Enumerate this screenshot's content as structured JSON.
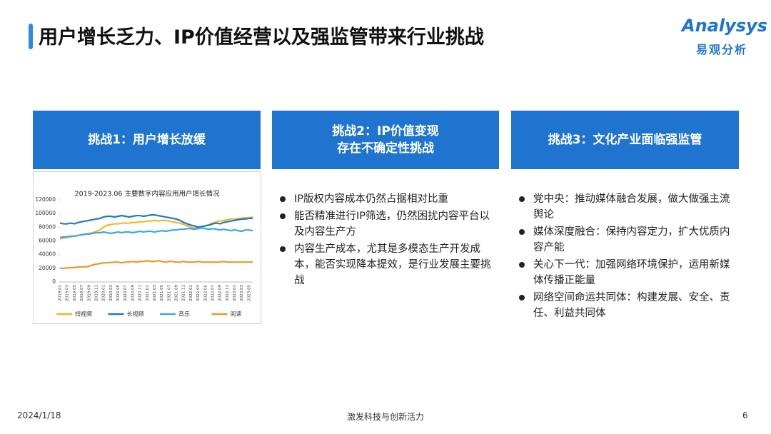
{
  "header": {
    "title": "用户增长乏力、IP价值经营以及强监管带来行业挑战",
    "logo": "Analysys",
    "logo_sub": "易观分析"
  },
  "columns": [
    {
      "heading": [
        "挑战1：用户增长放缓"
      ]
    },
    {
      "heading": [
        "挑战2：IP价值变现",
        "存在不确定性挑战"
      ],
      "bullets": [
        "IP版权内容成本仍然占据相对比重",
        "能否精准进行IP筛选，仍然困扰内容平台以及内容生产方",
        "内容生产成本，尤其是多模态生产开发成本，能否实现降本提效，是行业发展主要挑战"
      ]
    },
    {
      "heading": [
        "挑战3：文化产业面临强监管"
      ],
      "bullets": [
        "党中央：推动媒体融合发展，做大做强主流舆论",
        "媒体深度融合：保持内容定力，扩大优质内容产能",
        "关心下一代：加强网络环境保护，运用新媒体传播正能量",
        "网络空间命运共同体：构建发展、安全、责任、利益共同体"
      ]
    }
  ],
  "chart_data": {
    "type": "line",
    "title": "2019-2023.06 主要数字内容应用用户增长情况",
    "categories": [
      "2019.01",
      null,
      "2019.03",
      null,
      "2019.05",
      null,
      "2019.07",
      null,
      "2019.09",
      null,
      "2019.11",
      null,
      "2020.01",
      null,
      "2020.03",
      null,
      "2020.05",
      null,
      "2020.07",
      null,
      "2020.09",
      null,
      "2020.11",
      null,
      "2021.01",
      null,
      "2021.03",
      null,
      "2021.05",
      null,
      "2021.07",
      null,
      "2021.09",
      null,
      "2021.11",
      null,
      "2022.01",
      null,
      "2022.03",
      null,
      "2022.05",
      null,
      "2022.07",
      null,
      "2022.09",
      null,
      "2022.11",
      null,
      "2023.01",
      null,
      "2023.03",
      null,
      "2023.05",
      null
    ],
    "series": [
      {
        "name": "短视频",
        "color": "#f5b820",
        "values": [
          63000,
          64000,
          65000,
          66000,
          67000,
          68000,
          69000,
          70000,
          71000,
          72000,
          74000,
          76000,
          80000,
          83000,
          84000,
          85000,
          85000,
          86000,
          86000,
          86000,
          87000,
          87000,
          88000,
          88000,
          89000,
          89000,
          90000,
          89000,
          90000,
          90000,
          89000,
          88000,
          87000,
          86000,
          84000,
          82000,
          80000,
          79000,
          80000,
          81000,
          82000,
          84000,
          86000,
          88000,
          89000,
          90000,
          91000,
          92000,
          92000,
          93000,
          93000,
          94000,
          94000,
          95000
        ]
      },
      {
        "name": "长视频",
        "color": "#1c78d4",
        "values": [
          86000,
          85000,
          85000,
          86000,
          85000,
          87000,
          88000,
          89000,
          90000,
          91000,
          92000,
          93000,
          95000,
          96000,
          96000,
          95000,
          96000,
          97000,
          96000,
          95000,
          96000,
          97000,
          97000,
          96000,
          97000,
          98000,
          98000,
          97000,
          96000,
          95000,
          94000,
          93000,
          92000,
          90000,
          87000,
          85000,
          83000,
          82000,
          80000,
          81000,
          82000,
          83000,
          85000,
          86000,
          85000,
          87000,
          88000,
          89000,
          90000,
          91000,
          92000,
          92000,
          93000,
          93000
        ]
      },
      {
        "name": "音乐",
        "color": "#3aa7e8",
        "values": [
          65000,
          66000,
          66000,
          67000,
          67000,
          68000,
          69000,
          70000,
          70000,
          71000,
          72000,
          72000,
          73000,
          72000,
          71000,
          72000,
          73000,
          72000,
          73000,
          73000,
          72000,
          73000,
          74000,
          73000,
          74000,
          74000,
          73000,
          74000,
          75000,
          74000,
          75000,
          76000,
          76000,
          77000,
          77000,
          78000,
          78000,
          77000,
          78000,
          79000,
          78000,
          77000,
          78000,
          77000,
          76000,
          77000,
          76000,
          75000,
          76000,
          75000,
          74000,
          76000,
          76000,
          75000
        ]
      },
      {
        "name": "阅读",
        "color": "#f0962a",
        "values": [
          20000,
          20000,
          20500,
          21000,
          21000,
          22000,
          22000,
          22000,
          23000,
          25000,
          26000,
          27000,
          28000,
          28000,
          28500,
          29000,
          29000,
          28000,
          29000,
          29000,
          30000,
          29000,
          30000,
          30000,
          31000,
          30000,
          30000,
          31000,
          30000,
          29000,
          30000,
          30000,
          29000,
          29000,
          30000,
          29000,
          29000,
          29000,
          30000,
          29000,
          29000,
          29000,
          29000,
          29000,
          29000,
          30000,
          29000,
          29000,
          29000,
          29000,
          29000,
          29000,
          29000,
          29000
        ]
      }
    ],
    "ylim": [
      0,
      120000
    ],
    "yticks": [
      0,
      20000,
      40000,
      60000,
      80000,
      100000,
      120000
    ],
    "legend": "bottom"
  },
  "footer": {
    "date": "2024/1/18",
    "slogan": "激发科技与创新活力",
    "page": "6"
  }
}
